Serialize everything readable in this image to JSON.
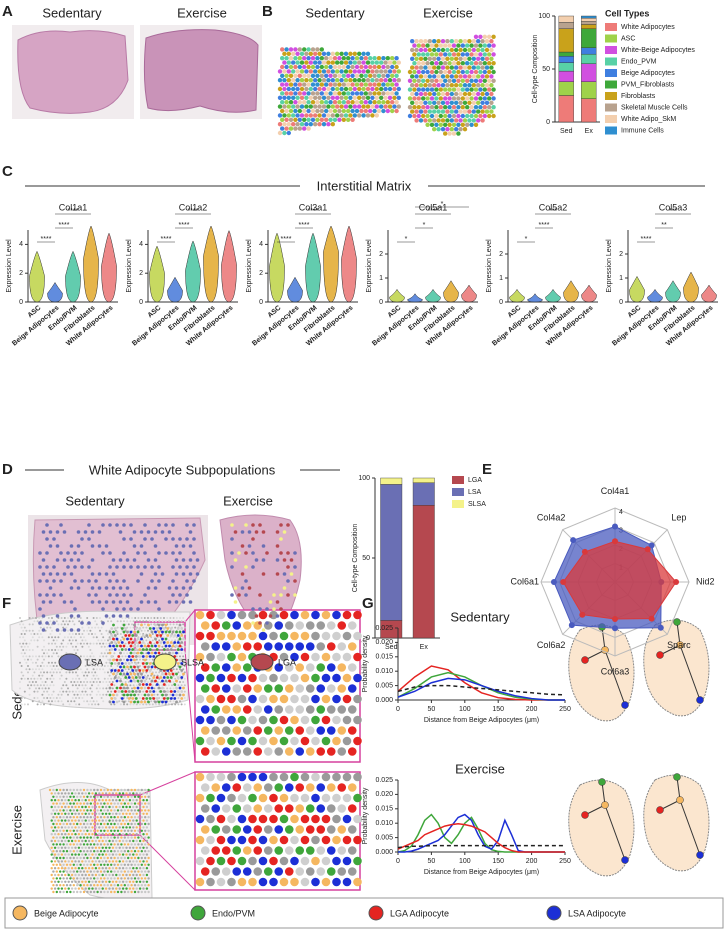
{
  "panels": {
    "A": {
      "label": "A",
      "sedentary": "Sedentary",
      "exercise": "Exercise"
    },
    "B": {
      "label": "B",
      "sedentary": "Sedentary",
      "exercise": "Exercise"
    },
    "C": {
      "label": "C",
      "title": "Interstitial Matrix"
    },
    "D": {
      "label": "D",
      "title": "White Adipocyte Subpopulations",
      "sedentary": "Sedentary",
      "exercise": "Exercise",
      "spot_legend": [
        {
          "label": "LSA",
          "color": "#6a6fb4"
        },
        {
          "label": "SLSA",
          "color": "#f4f28a"
        },
        {
          "label": "LGA",
          "color": "#b5484f"
        }
      ]
    },
    "E": {
      "label": "E"
    },
    "F": {
      "label": "F",
      "sedentary": "Sedentary",
      "exercise": "Exercise"
    },
    "G": {
      "label": "G"
    }
  },
  "legend": [
    {
      "label": "Beige Adipocyte",
      "color": "#f5b760"
    },
    {
      "label": "Endo/PVM",
      "color": "#3fa63b"
    },
    {
      "label": "LGA Adipocyte",
      "color": "#e52421"
    },
    {
      "label": "LSA Adipocyte",
      "color": "#1c2fd6"
    }
  ],
  "chart_data": [
    {
      "type": "stacked_bar",
      "ylabel": "Cell-type Composition",
      "legend_title": "Cell Types",
      "categories": [
        "Sed",
        "Ex"
      ],
      "ylim": [
        0,
        100
      ],
      "yticks": [
        0,
        50,
        100
      ],
      "series": [
        {
          "name": "White Adipocytes",
          "color": "#ee7b78",
          "values": [
            25,
            22
          ]
        },
        {
          "name": "ASC",
          "color": "#9fd24a",
          "values": [
            13,
            16
          ]
        },
        {
          "name": "White-Beige Adipocytes",
          "color": "#d14fe0",
          "values": [
            10,
            17
          ]
        },
        {
          "name": "Endo_PVM",
          "color": "#58d1a6",
          "values": [
            8,
            9
          ]
        },
        {
          "name": "Beige Adipocytes",
          "color": "#3f7fe0",
          "values": [
            6,
            6
          ]
        },
        {
          "name": "PVM_Fibroblasts",
          "color": "#3ea83a",
          "values": [
            4,
            18
          ]
        },
        {
          "name": "Fibroblasts",
          "color": "#c9a21b",
          "values": [
            22,
            4
          ]
        },
        {
          "name": "Skeletal Muscle Cells",
          "color": "#b8a28e",
          "values": [
            6,
            3
          ]
        },
        {
          "name": "White Adipo_SkM",
          "color": "#f3cfae",
          "values": [
            6,
            3
          ]
        },
        {
          "name": "Immune Cells",
          "color": "#2f8fd0",
          "values": [
            0,
            2
          ]
        }
      ]
    },
    {
      "type": "violin",
      "title": "Col1a1",
      "ylabel": "Expression Level",
      "ylim": [
        0,
        5
      ],
      "yticks": [
        0,
        2,
        4
      ],
      "categories": [
        "ASC",
        "Beige Adipocytes",
        "Endo/PVM",
        "Fibroblasts",
        "White Adipocytes"
      ],
      "colors": [
        "#b9cf3a",
        "#3a6fd6",
        "#3bbf9a",
        "#e0a21d",
        "#e86a6a"
      ],
      "values": [
        1.8,
        0.6,
        1.8,
        3,
        2.5
      ],
      "significance": [
        "****",
        "****",
        "****"
      ]
    },
    {
      "type": "violin",
      "title": "Col1a2",
      "ylabel": "Expression Level",
      "ylim": [
        0,
        5
      ],
      "yticks": [
        0,
        2,
        4
      ],
      "categories": [
        "ASC",
        "Beige Adipocytes",
        "Endo/PVM",
        "Fibroblasts",
        "White Adipocytes"
      ],
      "colors": [
        "#b9cf3a",
        "#3a6fd6",
        "#3bbf9a",
        "#e0a21d",
        "#e86a6a"
      ],
      "values": [
        2,
        0.8,
        2.2,
        3.2,
        2.6
      ],
      "significance": [
        "****",
        "****",
        "****"
      ]
    },
    {
      "type": "violin",
      "title": "Col3a1",
      "ylabel": "Expression Level",
      "ylim": [
        0,
        5
      ],
      "yticks": [
        0,
        2,
        4
      ],
      "categories": [
        "ASC",
        "Beige Adipocytes",
        "Endo/PVM",
        "Fibroblasts",
        "White Adipocytes"
      ],
      "colors": [
        "#b9cf3a",
        "#3a6fd6",
        "#3bbf9a",
        "#e0a21d",
        "#e86a6a"
      ],
      "values": [
        2.5,
        0.8,
        2.5,
        3.5,
        3
      ],
      "significance": [
        "****",
        "****",
        "****"
      ]
    },
    {
      "type": "violin",
      "title": "Col5a1",
      "ylabel": "Expression Level",
      "ylim": [
        0,
        3
      ],
      "yticks": [
        0,
        1,
        2
      ],
      "categories": [
        "ASC",
        "Beige Adipocytes",
        "Endo/PVM",
        "Fibroblasts",
        "White Adipocytes"
      ],
      "colors": [
        "#b9cf3a",
        "#3a6fd6",
        "#3bbf9a",
        "#e0a21d",
        "#e86a6a"
      ],
      "values": [
        0.2,
        0.1,
        0.2,
        0.4,
        0.3
      ],
      "significance": [
        "*",
        "*",
        "****",
        "*"
      ]
    },
    {
      "type": "violin",
      "title": "Col5a2",
      "ylabel": "Expression Level",
      "ylim": [
        0,
        3
      ],
      "yticks": [
        0,
        1,
        2
      ],
      "categories": [
        "ASC",
        "Beige Adipocytes",
        "Endo/PVM",
        "Fibroblasts",
        "White Adipocytes"
      ],
      "colors": [
        "#b9cf3a",
        "#3a6fd6",
        "#3bbf9a",
        "#e0a21d",
        "#e86a6a"
      ],
      "values": [
        0.2,
        0.1,
        0.2,
        0.4,
        0.3
      ],
      "significance": [
        "*",
        "****",
        "***"
      ]
    },
    {
      "type": "violin",
      "title": "Col5a3",
      "ylabel": "Expression Level",
      "ylim": [
        0,
        3
      ],
      "yticks": [
        0,
        1,
        2
      ],
      "categories": [
        "ASC",
        "Beige Adipocytes",
        "Endo/PVM",
        "Fibroblasts",
        "White Adipocytes"
      ],
      "colors": [
        "#b9cf3a",
        "#3a6fd6",
        "#3bbf9a",
        "#e0a21d",
        "#e86a6a"
      ],
      "values": [
        0.5,
        0.2,
        0.4,
        0.6,
        0.3
      ],
      "significance": [
        "****",
        "**",
        "***"
      ]
    },
    {
      "type": "stacked_bar",
      "ylabel": "Cell-type Composition",
      "categories": [
        "Sed",
        "Ex"
      ],
      "ylim": [
        0,
        100
      ],
      "yticks": [
        0,
        50,
        100
      ],
      "series": [
        {
          "name": "LGA",
          "color": "#b5484f",
          "values": [
            11,
            83
          ]
        },
        {
          "name": "LSA",
          "color": "#6a6fb4",
          "values": [
            85,
            14
          ]
        },
        {
          "name": "SLSA",
          "color": "#f4f28a",
          "values": [
            4,
            3
          ]
        }
      ]
    },
    {
      "type": "radar",
      "categories": [
        "Col4a1",
        "Lep",
        "Nid2",
        "Sparc",
        "Col6a3",
        "Col6a2",
        "Col6a1",
        "Col4a2"
      ],
      "rlim": [
        0,
        4
      ],
      "rticks": [
        1,
        2,
        3,
        4
      ],
      "series": [
        {
          "color": "#4a5bbf",
          "values": [
            3,
            2.8,
            2.5,
            3.5,
            2.5,
            3.3,
            3.3,
            3.2
          ]
        },
        {
          "color": "#d9393b",
          "values": [
            2.2,
            2.5,
            3.3,
            2.8,
            2,
            2.5,
            2.8,
            2.3
          ]
        }
      ]
    },
    {
      "type": "line",
      "title": "Sedentary",
      "xlabel": "Distance from Beige Adipocytes (μm)",
      "ylabel": "Probability density",
      "xlim": [
        0,
        250
      ],
      "xticks": [
        0,
        50,
        100,
        150,
        200,
        250
      ],
      "ylim": [
        0,
        0.025
      ],
      "yticks": [
        {
          "value": 0,
          "label": "0.000"
        },
        {
          "value": 0.005,
          "label": "0.005"
        },
        {
          "value": 0.01,
          "label": "0.010"
        },
        {
          "value": 0.015,
          "label": "0.015"
        },
        {
          "value": 0.02,
          "label": "0.020"
        },
        {
          "value": 0.025,
          "label": "0.025"
        }
      ],
      "x": [
        0,
        25,
        50,
        75,
        100,
        125,
        150,
        175,
        200,
        225,
        250
      ],
      "series": [
        {
          "color": "#e52421",
          "values": [
            0.003,
            0.008,
            0.0118,
            0.0105,
            0.006,
            0.0025,
            0.0008,
            0.0002,
            0,
            0,
            0
          ]
        },
        {
          "color": "#3fa63b",
          "values": [
            0.001,
            0.004,
            0.008,
            0.0095,
            0.008,
            0.005,
            0.0025,
            0.001,
            0.0003,
            0,
            0
          ]
        },
        {
          "color": "#1c2fd6",
          "values": [
            0.001,
            0.003,
            0.006,
            0.0075,
            0.007,
            0.005,
            0.003,
            0.0015,
            0.0005,
            0,
            0
          ]
        },
        {
          "color": "#222222",
          "style": "dashed",
          "values": [
            0.003,
            0.0045,
            0.005,
            0.005,
            0.0045,
            0.004,
            0.0035,
            0.003,
            0.0025,
            0.002,
            0.0018
          ]
        }
      ]
    },
    {
      "type": "line",
      "title": "Exercise",
      "xlabel": "Distance from Beige Adipocytes (μm)",
      "ylabel": "Probability density",
      "xlim": [
        0,
        250
      ],
      "xticks": [
        0,
        50,
        100,
        150,
        200,
        250
      ],
      "ylim": [
        0,
        0.025
      ],
      "yticks": [
        {
          "value": 0,
          "label": "0.000"
        },
        {
          "value": 0.005,
          "label": "0.005"
        },
        {
          "value": 0.01,
          "label": "0.010"
        },
        {
          "value": 0.015,
          "label": "0.015"
        },
        {
          "value": 0.02,
          "label": "0.020"
        },
        {
          "value": 0.025,
          "label": "0.025"
        }
      ],
      "x": [
        0,
        10,
        20,
        30,
        40,
        50,
        60,
        70,
        80,
        90,
        100,
        110,
        120,
        130,
        140,
        150,
        160,
        170,
        180,
        190,
        200,
        210,
        220,
        230,
        240,
        250
      ],
      "series": [
        {
          "color": "#3fa63b",
          "values": [
            0,
            0.0005,
            0.002,
            0.006,
            0.011,
            0.013,
            0.01,
            0.005,
            0.003,
            0.006,
            0.01,
            0.012,
            0.008,
            0.003,
            0.0008,
            0.0002,
            0,
            0,
            0,
            0,
            0,
            0,
            0,
            0,
            0,
            0
          ]
        },
        {
          "color": "#1c2fd6",
          "values": [
            0,
            0,
            0.0003,
            0.001,
            0.002,
            0.003,
            0.004,
            0.006,
            0.009,
            0.012,
            0.013,
            0.011,
            0.006,
            0.002,
            0.001,
            0.004,
            0.011,
            0.006,
            0.0005,
            0,
            0,
            0,
            0,
            0,
            0,
            0
          ]
        },
        {
          "color": "#e52421",
          "values": [
            0.001,
            0.002,
            0.003,
            0.004,
            0.006,
            0.007,
            0.008,
            0.009,
            0.0095,
            0.0098,
            0.0095,
            0.009,
            0.008,
            0.007,
            0.005,
            0.003,
            0.0015,
            0.0005,
            0,
            0,
            0,
            0,
            0,
            0,
            0,
            0
          ]
        },
        {
          "color": "#222222",
          "style": "dashed",
          "values": [
            0.0015,
            0.0018,
            0.002,
            0.002,
            0.0021,
            0.0022,
            0.0022,
            0.0022,
            0.0022,
            0.0022,
            0.0022,
            0.0022,
            0.0022,
            0.0022,
            0.0022,
            0.0022,
            0.0022,
            0.0022,
            0.0022,
            0.0022,
            0.0022,
            0.0022,
            0.0022,
            0.0022,
            0.0022,
            0.0022
          ]
        }
      ]
    }
  ]
}
